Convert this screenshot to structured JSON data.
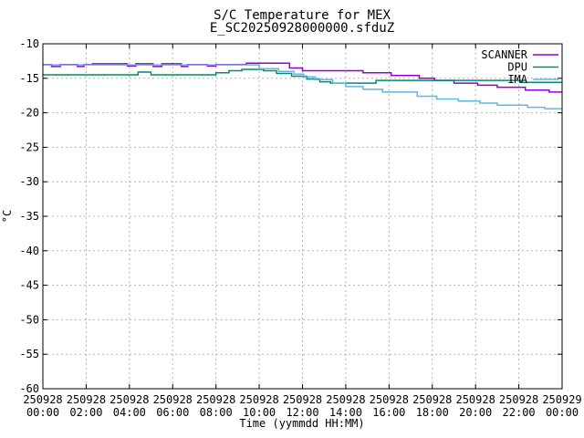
{
  "window": {
    "background": "#ffffff",
    "text_color": "#000000"
  },
  "chart_data": {
    "type": "line",
    "style": "gnuplot-steps",
    "title": "S/C Temperature for MEX",
    "subtitle": "E_SC20250928000000.sfduZ",
    "xlabel": "Time (yymmdd HH:MM)",
    "ylabel": "°C",
    "ylim": [
      -60,
      -10
    ],
    "xlim_hours": [
      0,
      24
    ],
    "grid": true,
    "grid_color": "#b3b3b3",
    "frame_color": "#000000",
    "legend_position": "top-right-inside",
    "y_ticks": [
      -10,
      -15,
      -20,
      -25,
      -30,
      -35,
      -40,
      -45,
      -50,
      -55,
      -60
    ],
    "x_tick_hours": [
      0,
      2,
      4,
      6,
      8,
      10,
      12,
      14,
      16,
      18,
      20,
      22,
      24
    ],
    "x_tick_labels": [
      {
        "date": "250928",
        "time": "00:00"
      },
      {
        "date": "250928",
        "time": "02:00"
      },
      {
        "date": "250928",
        "time": "04:00"
      },
      {
        "date": "250928",
        "time": "06:00"
      },
      {
        "date": "250928",
        "time": "08:00"
      },
      {
        "date": "250928",
        "time": "10:00"
      },
      {
        "date": "250928",
        "time": "12:00"
      },
      {
        "date": "250928",
        "time": "14:00"
      },
      {
        "date": "250928",
        "time": "16:00"
      },
      {
        "date": "250928",
        "time": "18:00"
      },
      {
        "date": "250928",
        "time": "20:00"
      },
      {
        "date": "250928",
        "time": "22:00"
      },
      {
        "date": "250929",
        "time": "00:00"
      }
    ],
    "series": [
      {
        "name": "SCANNER",
        "color": "#9400d3",
        "points_hour_degC": [
          [
            0.0,
            -13.0
          ],
          [
            0.4,
            -13.3
          ],
          [
            0.8,
            -13.0
          ],
          [
            1.6,
            -13.3
          ],
          [
            1.9,
            -13.0
          ],
          [
            2.3,
            -12.9
          ],
          [
            3.9,
            -13.2
          ],
          [
            4.3,
            -12.9
          ],
          [
            5.1,
            -13.3
          ],
          [
            5.5,
            -12.9
          ],
          [
            6.4,
            -13.3
          ],
          [
            6.7,
            -13.0
          ],
          [
            7.6,
            -13.2
          ],
          [
            8.0,
            -13.0
          ],
          [
            9.4,
            -12.8
          ],
          [
            11.4,
            -13.5
          ],
          [
            12.0,
            -13.9
          ],
          [
            14.8,
            -14.2
          ],
          [
            16.1,
            -14.6
          ],
          [
            17.4,
            -15.0
          ],
          [
            18.1,
            -15.3
          ],
          [
            19.0,
            -15.7
          ],
          [
            20.1,
            -16.0
          ],
          [
            21.0,
            -16.3
          ],
          [
            22.3,
            -16.7
          ],
          [
            23.4,
            -17.0
          ]
        ]
      },
      {
        "name": "DPU",
        "color": "#008c6e",
        "points_hour_degC": [
          [
            0.0,
            -14.5
          ],
          [
            4.4,
            -14.1
          ],
          [
            5.0,
            -14.5
          ],
          [
            8.0,
            -14.2
          ],
          [
            8.6,
            -13.9
          ],
          [
            9.2,
            -13.7
          ],
          [
            10.2,
            -13.9
          ],
          [
            10.8,
            -14.3
          ],
          [
            11.5,
            -14.7
          ],
          [
            12.2,
            -15.1
          ],
          [
            12.8,
            -15.5
          ],
          [
            13.3,
            -15.7
          ],
          [
            15.4,
            -15.3
          ],
          [
            22.1,
            -15.6
          ]
        ]
      },
      {
        "name": "IMA",
        "color": "#5fb7e6",
        "points_hour_degC": [
          [
            0.0,
            -13.05
          ],
          [
            10.0,
            -13.6
          ],
          [
            10.9,
            -14.0
          ],
          [
            11.6,
            -14.4
          ],
          [
            12.05,
            -14.8
          ],
          [
            12.6,
            -15.2
          ],
          [
            13.4,
            -15.7
          ],
          [
            14.0,
            -16.2
          ],
          [
            14.8,
            -16.6
          ],
          [
            15.7,
            -17.0
          ],
          [
            17.3,
            -17.6
          ],
          [
            18.2,
            -18.0
          ],
          [
            19.2,
            -18.3
          ],
          [
            20.2,
            -18.6
          ],
          [
            21.0,
            -18.9
          ],
          [
            22.4,
            -19.2
          ],
          [
            23.2,
            -19.4
          ]
        ]
      }
    ]
  }
}
